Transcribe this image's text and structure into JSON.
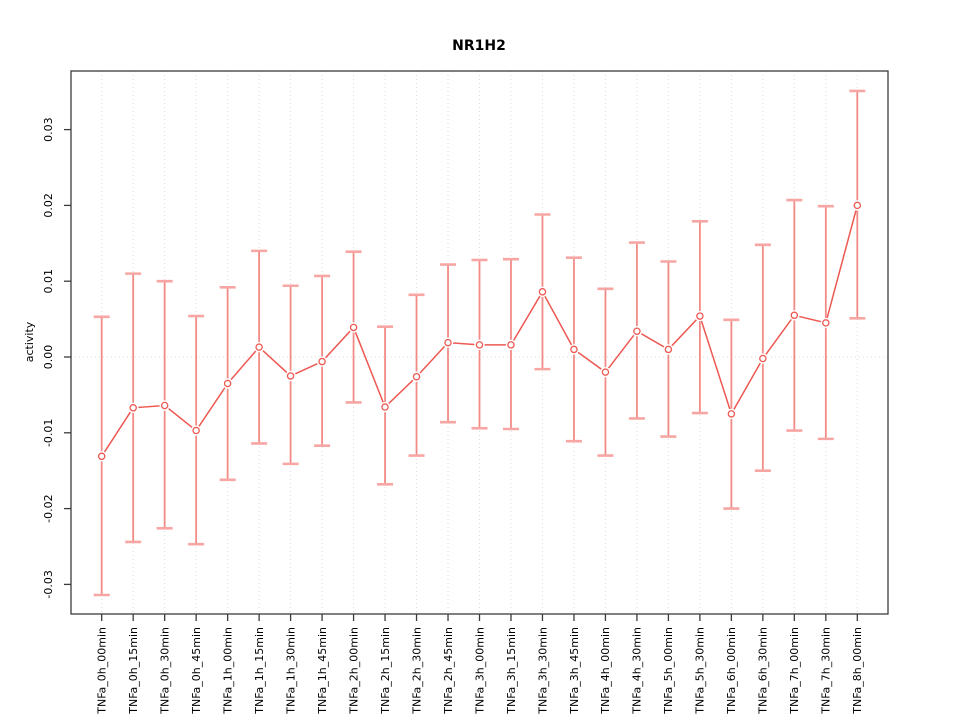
{
  "chart_data": {
    "type": "line",
    "subtype": "points-with-error-bars",
    "title": "NR1H2",
    "ylabel": "activity",
    "categories": [
      "TNFa_0h_00min",
      "TNFa_0h_15min",
      "TNFa_0h_30min",
      "TNFa_0h_45min",
      "TNFa_1h_00min",
      "TNFa_1h_15min",
      "TNFa_1h_30min",
      "TNFa_1h_45min",
      "TNFa_2h_00min",
      "TNFa_2h_15min",
      "TNFa_2h_30min",
      "TNFa_2h_45min",
      "TNFa_3h_00min",
      "TNFa_3h_15min",
      "TNFa_3h_30min",
      "TNFa_3h_45min",
      "TNFa_4h_00min",
      "TNFa_4h_30min",
      "TNFa_5h_00min",
      "TNFa_5h_30min",
      "TNFa_6h_00min",
      "TNFa_6h_30min",
      "TNFa_7h_00min",
      "TNFa_7h_30min",
      "TNFa_8h_00min"
    ],
    "series": [
      {
        "name": "activity",
        "values": [
          -0.0131,
          -0.0067,
          -0.0064,
          -0.0097,
          -0.0035,
          0.0013,
          -0.0025,
          -0.0006,
          0.0039,
          -0.0066,
          -0.0026,
          0.0019,
          0.0016,
          0.0016,
          0.0086,
          0.001,
          -0.002,
          0.0034,
          0.001,
          0.0054,
          -0.0075,
          -0.0002,
          0.0055,
          0.0045,
          0.02
        ],
        "err_low": [
          -0.0314,
          -0.0244,
          -0.0226,
          -0.0247,
          -0.0162,
          -0.0114,
          -0.0141,
          -0.0117,
          -0.006,
          -0.0168,
          -0.013,
          -0.0086,
          -0.0094,
          -0.0095,
          -0.0016,
          -0.0111,
          -0.013,
          -0.0081,
          -0.0105,
          -0.0074,
          -0.02,
          -0.015,
          -0.0097,
          -0.0108,
          0.0051
        ],
        "err_high": [
          0.0053,
          0.011,
          0.01,
          0.0054,
          0.0092,
          0.014,
          0.0094,
          0.0107,
          0.0139,
          0.004,
          0.0082,
          0.0122,
          0.0128,
          0.0129,
          0.0188,
          0.0131,
          0.009,
          0.0151,
          0.0126,
          0.0179,
          0.0049,
          0.0148,
          0.0207,
          0.0199,
          0.0351
        ]
      }
    ],
    "yticks": [
      -0.03,
      -0.02,
      -0.01,
      0,
      0.01,
      0.02,
      0.03
    ],
    "ytick_labels": [
      "-0.03",
      "-0.02",
      "-0.01",
      "0.00",
      "0.01",
      "0.02",
      "0.03"
    ],
    "ylim": [
      -0.0335,
      0.036
    ],
    "grid": "dotted vertical gridline at every category; dotted horizontal line at y=0",
    "legend": "none",
    "x_labels_rotated_degrees": 90,
    "colors": {
      "point": "#ED5851",
      "line": "#ED5851",
      "errorbar": "#F28B86",
      "cap": "#F7A6A3",
      "grid": "#DBDBDB",
      "axis": "#3B3B3B",
      "text": "#000000",
      "background": "#FFFFFF"
    }
  }
}
